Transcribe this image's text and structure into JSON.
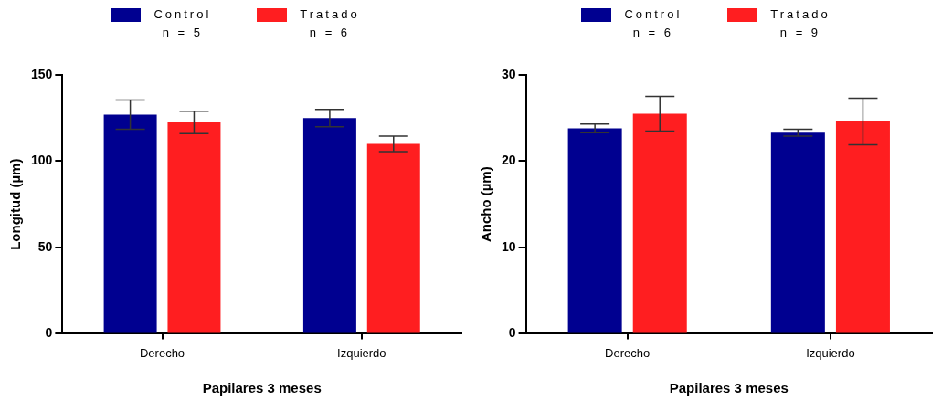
{
  "chart_data": [
    {
      "type": "bar",
      "categories": [
        "Derecho",
        "Izquierdo"
      ],
      "xlabel": "Papilares 3 meses",
      "ylabel": "Longitud (µm)",
      "ylim": [
        0,
        150
      ],
      "yticks": [
        0,
        50,
        100,
        150
      ],
      "grid": false,
      "legend": "top",
      "annotations": [
        "n = 5",
        "n = 6"
      ],
      "series": [
        {
          "name": "Control",
          "color": "#000090",
          "values": [
            127,
            125
          ],
          "errors": [
            8.5,
            5
          ]
        },
        {
          "name": "Tratado",
          "color": "#ff1e20",
          "values": [
            122.5,
            110
          ],
          "errors": [
            6.5,
            4.5
          ]
        }
      ]
    },
    {
      "type": "bar",
      "categories": [
        "Derecho",
        "Izquierdo"
      ],
      "xlabel": "Papilares 3 meses",
      "ylabel": "Ancho (µm)",
      "ylim": [
        0,
        30
      ],
      "yticks": [
        0,
        10,
        20,
        30
      ],
      "grid": false,
      "legend": "top",
      "annotations": [
        "n = 6",
        "n = 9"
      ],
      "series": [
        {
          "name": "Control",
          "color": "#000090",
          "values": [
            23.8,
            23.3
          ],
          "errors": [
            0.5,
            0.4
          ]
        },
        {
          "name": "Tratado",
          "color": "#ff1e20",
          "values": [
            25.5,
            24.6
          ],
          "errors": [
            2,
            2.7
          ]
        }
      ]
    }
  ]
}
